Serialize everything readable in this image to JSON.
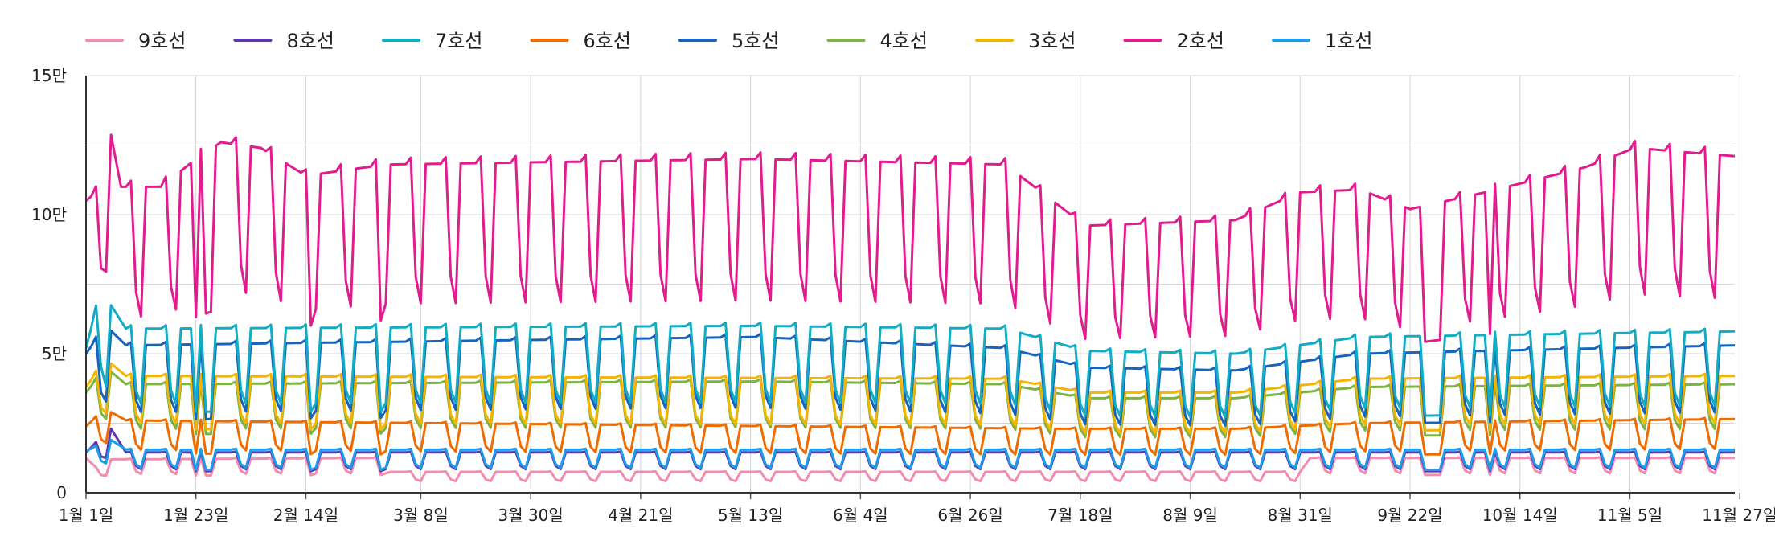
{
  "chart_data": {
    "type": "line",
    "title": "",
    "xlabel": "",
    "ylabel": "",
    "ylim": [
      0,
      150000
    ],
    "y_ticks": [
      {
        "value": 0,
        "label": "0"
      },
      {
        "value": 50000,
        "label": "5만"
      },
      {
        "value": 100000,
        "label": "10만"
      },
      {
        "value": 150000,
        "label": "15만"
      }
    ],
    "x_range_days": [
      0,
      330
    ],
    "x_ticks": [
      {
        "day": 0,
        "label": "1월 1일"
      },
      {
        "day": 22,
        "label": "1월 23일"
      },
      {
        "day": 44,
        "label": "2월 14일"
      },
      {
        "day": 67,
        "label": "3월 8일"
      },
      {
        "day": 89,
        "label": "3월 30일"
      },
      {
        "day": 111,
        "label": "4월 21일"
      },
      {
        "day": 133,
        "label": "5월 13일"
      },
      {
        "day": 155,
        "label": "6월 4일"
      },
      {
        "day": 177,
        "label": "6월 26일"
      },
      {
        "day": 199,
        "label": "7월 18일"
      },
      {
        "day": 221,
        "label": "8월 9일"
      },
      {
        "day": 243,
        "label": "8월 31일"
      },
      {
        "day": 265,
        "label": "9월 22일"
      },
      {
        "day": 287,
        "label": "10월 14일"
      },
      {
        "day": 309,
        "label": "11월 5일"
      },
      {
        "day": 331,
        "label": "11월 27일"
      }
    ],
    "grid": true,
    "legend_position": "top-left",
    "series_order_back_to_front": [
      "9호선",
      "8호선",
      "6호선",
      "1호선",
      "4호선",
      "3호선",
      "5호선",
      "7호선",
      "2호선"
    ],
    "series": [
      {
        "name": "9호선",
        "color": "#f28cb1",
        "weekday_level": 12500,
        "weekend_level": 7000,
        "keypoints": [
          [
            0,
            12500
          ],
          [
            2,
            9000
          ],
          [
            5,
            12000
          ],
          [
            60,
            12500
          ],
          [
            61,
            7500
          ],
          [
            243,
            7500
          ],
          [
            245,
            12500
          ],
          [
            330,
            12500
          ]
        ]
      },
      {
        "name": "8호선",
        "color": "#5e35b1",
        "weekday_level": 14500,
        "weekend_level": 8500,
        "keypoints": [
          [
            0,
            14500
          ],
          [
            5,
            23000
          ],
          [
            8,
            14500
          ],
          [
            330,
            14500
          ]
        ]
      },
      {
        "name": "7호선",
        "color": "#12acc4",
        "weekday_level": 59000,
        "weekend_level": 32000,
        "keypoints": [
          [
            0,
            52000
          ],
          [
            3,
            73000
          ],
          [
            8,
            59000
          ],
          [
            134,
            60000
          ],
          [
            184,
            59000
          ],
          [
            200,
            51000
          ],
          [
            230,
            50000
          ],
          [
            255,
            56000
          ],
          [
            330,
            58000
          ]
        ]
      },
      {
        "name": "6호선",
        "color": "#ef6c00",
        "weekday_level": 26000,
        "weekend_level": 15500,
        "keypoints": [
          [
            0,
            24000
          ],
          [
            4,
            30000
          ],
          [
            8,
            26000
          ],
          [
            195,
            23000
          ],
          [
            230,
            23000
          ],
          [
            255,
            25000
          ],
          [
            330,
            26500
          ]
        ]
      },
      {
        "name": "5호선",
        "color": "#1565c0",
        "weekday_level": 53000,
        "weekend_level": 29000,
        "keypoints": [
          [
            0,
            50000
          ],
          [
            4,
            60000
          ],
          [
            8,
            53000
          ],
          [
            134,
            56000
          ],
          [
            184,
            52000
          ],
          [
            200,
            45000
          ],
          [
            230,
            44000
          ],
          [
            255,
            50000
          ],
          [
            330,
            53000
          ]
        ]
      },
      {
        "name": "4호선",
        "color": "#7cb342",
        "weekday_level": 39000,
        "weekend_level": 23000,
        "keypoints": [
          [
            0,
            36000
          ],
          [
            4,
            45000
          ],
          [
            8,
            39000
          ],
          [
            134,
            40000
          ],
          [
            184,
            39000
          ],
          [
            200,
            34000
          ],
          [
            230,
            34000
          ],
          [
            255,
            38000
          ],
          [
            330,
            39000
          ]
        ]
      },
      {
        "name": "3호선",
        "color": "#f4b400",
        "weekday_level": 42000,
        "weekend_level": 25000,
        "keypoints": [
          [
            0,
            38000
          ],
          [
            4,
            48000
          ],
          [
            8,
            42000
          ],
          [
            184,
            41000
          ],
          [
            200,
            36000
          ],
          [
            230,
            36000
          ],
          [
            255,
            41000
          ],
          [
            330,
            42000
          ]
        ]
      },
      {
        "name": "2호선",
        "color": "#e21c8e",
        "weekday_level": 118000,
        "weekend_level": 68000,
        "keypoints": [
          [
            0,
            105000
          ],
          [
            2,
            108000
          ],
          [
            4,
            138000
          ],
          [
            7,
            110000
          ],
          [
            15,
            110000
          ],
          [
            22,
            120000
          ],
          [
            27,
            126000
          ],
          [
            35,
            124000
          ],
          [
            44,
            114000
          ],
          [
            60,
            118000
          ],
          [
            134,
            120000
          ],
          [
            184,
            118000
          ],
          [
            200,
            96000
          ],
          [
            230,
            98000
          ],
          [
            243,
            108000
          ],
          [
            255,
            109000
          ],
          [
            265,
            102000
          ],
          [
            280,
            108000
          ],
          [
            300,
            117000
          ],
          [
            310,
            124000
          ],
          [
            330,
            121000
          ]
        ]
      }
    ],
    "holidays": [
      [
        22,
        32000
      ],
      [
        24,
        36000
      ],
      [
        25,
        36000
      ],
      [
        45,
        36000
      ],
      [
        59,
        38000
      ],
      [
        268,
        24000
      ],
      [
        269,
        36000
      ],
      [
        270,
        38000
      ],
      [
        271,
        32000
      ],
      [
        281,
        60000
      ]
    ]
  },
  "legend": {
    "items": [
      {
        "label": "9호선",
        "color": "#f28cb1"
      },
      {
        "label": "8호선",
        "color": "#5e35b1"
      },
      {
        "label": "7호선",
        "color": "#12acc4"
      },
      {
        "label": "6호선",
        "color": "#ef6c00"
      },
      {
        "label": "5호선",
        "color": "#1565c0"
      },
      {
        "label": "4호선",
        "color": "#7cb342"
      },
      {
        "label": "3호선",
        "color": "#f4b400"
      },
      {
        "label": "2호선",
        "color": "#e21c8e"
      },
      {
        "label": "1호선",
        "color": "#1e9be9"
      }
    ]
  }
}
